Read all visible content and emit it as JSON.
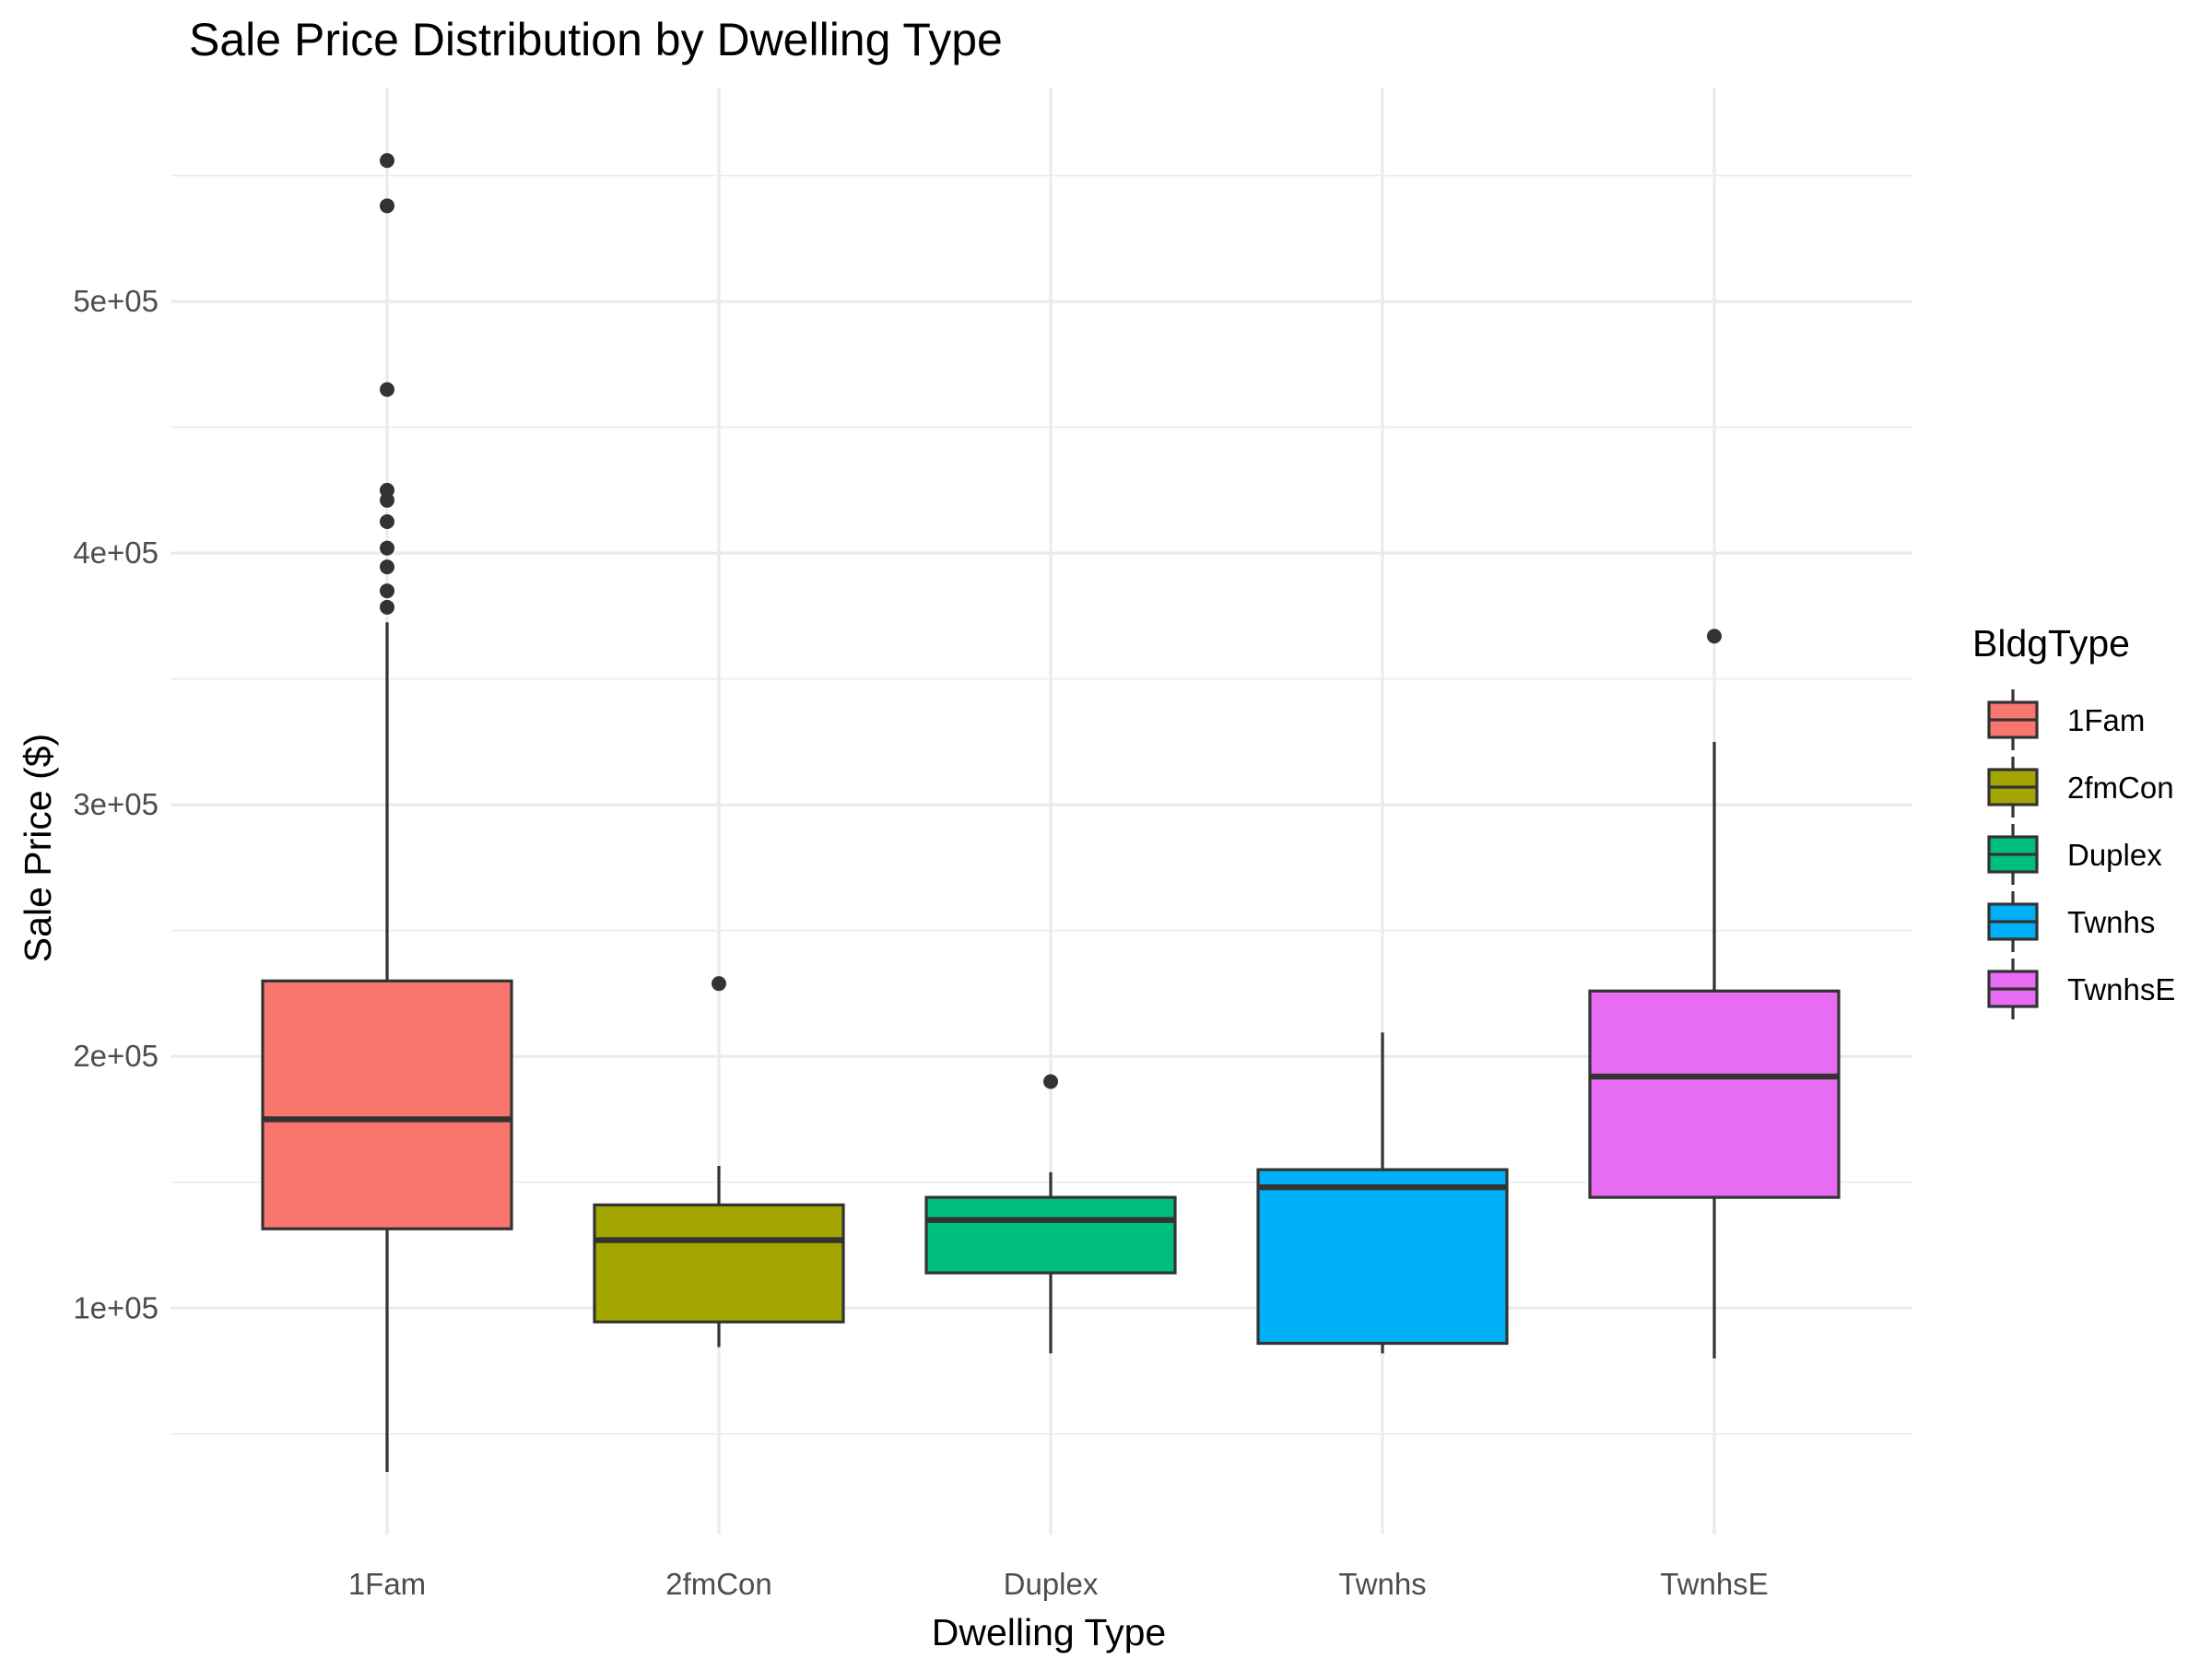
{
  "chart_data": {
    "type": "box",
    "title": "Sale Price Distribution by Dwelling Type",
    "xlabel": "Dwelling Type",
    "ylabel": "Sale Price ($)",
    "ylim": [
      10000,
      585000
    ],
    "y_ticks": [
      100000,
      200000,
      300000,
      400000,
      500000
    ],
    "y_tick_labels": [
      "1e+05",
      "2e+05",
      "3e+05",
      "4e+05",
      "5e+05"
    ],
    "y_minor_ticks": [
      50000,
      150000,
      250000,
      350000,
      450000,
      550000
    ],
    "grid": true,
    "legend": {
      "title": "BldgType",
      "placement": "right"
    },
    "categories": [
      "1Fam",
      "2fmCon",
      "Duplex",
      "Twnhs",
      "TwnhsE"
    ],
    "series": [
      {
        "name": "1Fam",
        "color": "#F8766D",
        "whisker_low": 34900,
        "q1": 131500,
        "median": 175000,
        "q3": 230000,
        "whisker_high": 372500,
        "outliers": [
          378500,
          385000,
          394500,
          402000,
          412500,
          421000,
          425000,
          465000,
          538000,
          556000
        ]
      },
      {
        "name": "2fmCon",
        "color": "#A3A500",
        "whisker_low": 84500,
        "q1": 94500,
        "median": 127000,
        "q3": 141000,
        "whisker_high": 156500,
        "outliers": [
          228950
        ]
      },
      {
        "name": "Duplex",
        "color": "#00BF7D",
        "whisker_low": 82000,
        "q1": 114000,
        "median": 135000,
        "q3": 144000,
        "whisker_high": 154000,
        "outliers": [
          190000
        ]
      },
      {
        "name": "Twnhs",
        "color": "#00B0F6",
        "whisker_low": 82000,
        "q1": 86000,
        "median": 148000,
        "q3": 155000,
        "whisker_high": 209500,
        "outliers": []
      },
      {
        "name": "TwnhsE",
        "color": "#E76BF3",
        "whisker_low": 80000,
        "q1": 144000,
        "median": 192000,
        "q3": 226000,
        "whisker_high": 325000,
        "outliers": [
          367000
        ]
      }
    ]
  }
}
